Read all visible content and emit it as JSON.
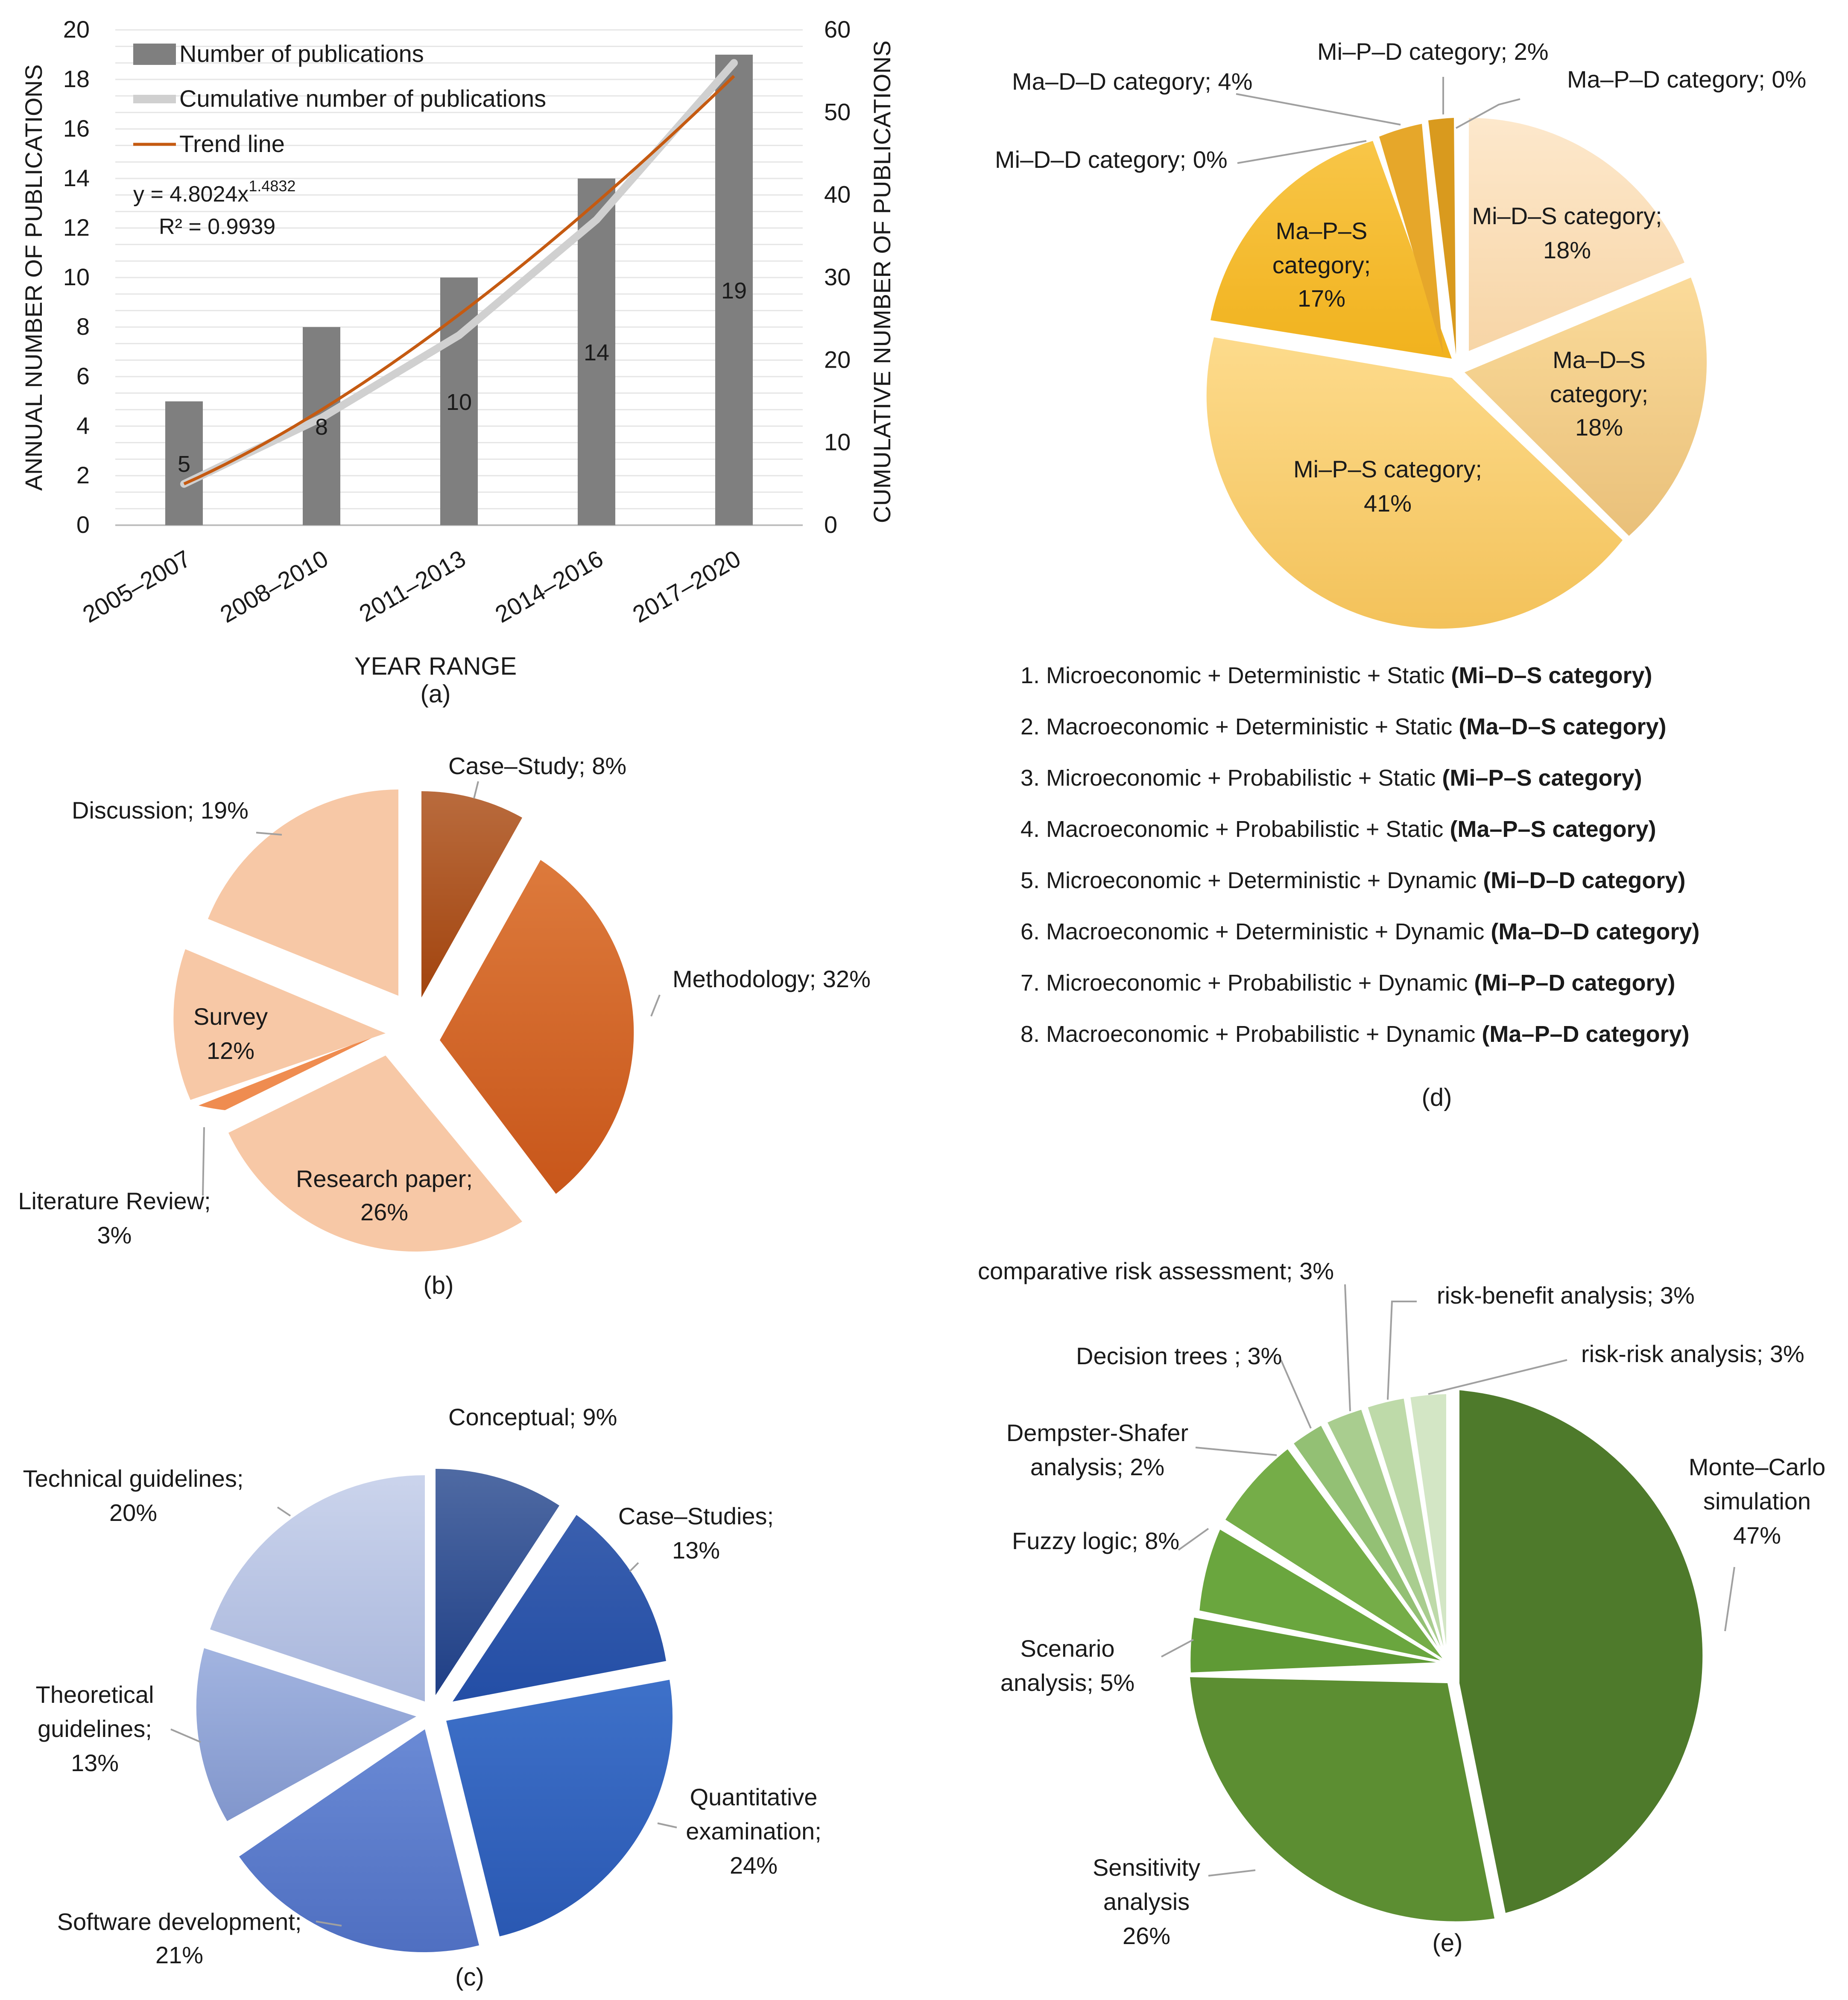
{
  "chart_data": [
    {
      "id": "a",
      "type": "bar",
      "panel_label": "(a)",
      "categories": [
        "2005–2007",
        "2008–2010",
        "2011–2013",
        "2014–2016",
        "2017–2020"
      ],
      "series": [
        {
          "name": "Number of publications",
          "axis": "left",
          "values": [
            5,
            8,
            10,
            14,
            19
          ],
          "labels": [
            "5",
            "8",
            "10",
            "14",
            "19"
          ],
          "color": "#7f7f7f"
        },
        {
          "name": "Cumulative number of publications",
          "axis": "right",
          "type": "line",
          "values": [
            5,
            13,
            23,
            37,
            56
          ],
          "color": "#d0d0d0"
        },
        {
          "name": "Trend line",
          "axis": "right",
          "type": "line",
          "values": [
            5,
            14,
            24.5,
            36.5,
            52.3
          ],
          "color": "#c55a11"
        }
      ],
      "equation": "y = 4.8024x",
      "equation_exponent": "1.4832",
      "r_squared": "R² = 0.9939",
      "xlabel": "YEAR RANGE",
      "ylabel": "ANNUAL NUMBER OF PUBLICATIONS",
      "y2label": "CUMULATIVE NUMBER OF PUBLICATIONS",
      "ylim": [
        0,
        20
      ],
      "y_ticks": [
        "0",
        "2",
        "4",
        "6",
        "8",
        "10",
        "12",
        "14",
        "16",
        "18",
        "20"
      ],
      "y2lim": [
        0,
        60
      ],
      "y2_ticks": [
        "0",
        "10",
        "20",
        "30",
        "40",
        "50",
        "60"
      ],
      "grid": true,
      "legend": "top-left"
    },
    {
      "id": "b",
      "type": "pie",
      "panel_label": "(b)",
      "slices": [
        {
          "label": "Case–Study; 8%",
          "value": 8,
          "color": "#a6501e"
        },
        {
          "label": "Methodology; 32%",
          "value": 32,
          "color": "#d4692c"
        },
        {
          "label": "Research paper; 26%",
          "value": 26,
          "color": "#f7c8a6"
        },
        {
          "label": "Literature Review; 3%",
          "value": 3,
          "color": "#ee8850"
        },
        {
          "label": "Survey 12%",
          "value": 12,
          "color": "#f7c8a6"
        },
        {
          "label": "Discussion; 19%",
          "value": 19,
          "color": "#f7c8a6"
        }
      ]
    },
    {
      "id": "c",
      "type": "pie",
      "panel_label": "(c)",
      "slices": [
        {
          "label": "Conceptual; 9%",
          "value": 9,
          "color": "#2e4d8c"
        },
        {
          "label": "Case–Studies; 13%",
          "value": 13,
          "color": "#2f56a8"
        },
        {
          "label": "Quantitative examination; 24%",
          "value": 24,
          "color": "#3767bf"
        },
        {
          "label": "Software development; 21%",
          "value": 21,
          "color": "#6282cc"
        },
        {
          "label": "Theoretical guidelines; 13%",
          "value": 13,
          "color": "#9aacdb"
        },
        {
          "label": "Technical guidelines; 20%",
          "value": 20,
          "color": "#bfcbe8"
        }
      ]
    },
    {
      "id": "d",
      "type": "pie",
      "panel_label": "(d)",
      "slices": [
        {
          "label": "Mi–D–S category; 18%",
          "value": 18,
          "color": "#fbdfb9"
        },
        {
          "label": "Ma–D–S category; 18%",
          "value": 18,
          "color": "#f5cf86"
        },
        {
          "label": "Mi–P–S category; 41%",
          "value": 41,
          "color": "#fbd27a"
        },
        {
          "label": "Ma–P–S category; 17%",
          "value": 17,
          "color": "#f6bd30"
        },
        {
          "label": "Mi–D–D category; 0%",
          "value": 0,
          "color": "#e5a300"
        },
        {
          "label": "Ma–D–D category; 4%",
          "value": 4,
          "color": "#e6a826"
        },
        {
          "label": "Mi–P–D category; 2%",
          "value": 2,
          "color": "#d89a20"
        },
        {
          "label": "Ma–P–D category; 0%",
          "value": 0,
          "color": "#c88a10"
        }
      ]
    },
    {
      "id": "e",
      "type": "pie",
      "panel_label": "(e)",
      "slices": [
        {
          "label": "Monte–Carlo simulation 47%",
          "value": 47,
          "color": "#4e7a2b"
        },
        {
          "label": "Sensitivity analysis 26%",
          "value": 26,
          "color": "#5c8e32"
        },
        {
          "label": "Scenario analysis; 5%",
          "value": 5,
          "color": "#5f9a35"
        },
        {
          "label": "Fuzzy logic; 8%",
          "value": 8,
          "color": "#6aa63e"
        },
        {
          "label": "Dempster-Shafer analysis; 2%",
          "value": 2,
          "color": "#75ad48"
        },
        {
          "label": "Decision trees ; 3%",
          "value": 3,
          "color": "#93c074"
        },
        {
          "label": "comparative risk assessment; 3%",
          "value": 3,
          "color": "#a9cd8f"
        },
        {
          "label": "risk-benefit analysis; 3%",
          "value": 3,
          "color": "#bedaa9"
        },
        {
          "label": "risk-risk analysis; 3%",
          "value": 3,
          "color": "#d3e6c5"
        }
      ]
    }
  ],
  "panels": {
    "a": {
      "legend": [
        "Number of publications",
        "Cumulative number of publications",
        "Trend line"
      ]
    },
    "b": {
      "labels": {
        "case_study": "Case–Study; 8%",
        "discussion": "Discussion; 19%",
        "methodology": "Methodology; 32%",
        "survey_1": "Survey",
        "survey_2": "12%",
        "research_1": "Research paper;",
        "research_2": "26%",
        "litrev_1": "Literature Review;",
        "litrev_2": "3%"
      }
    },
    "c": {
      "labels": {
        "conceptual": "Conceptual; 9%",
        "case_1": "Case–Studies;",
        "case_2": "13%",
        "tech_1": "Technical guidelines;",
        "tech_2": "20%",
        "theo_1": "Theoretical",
        "theo_2": "guidelines;",
        "theo_3": "13%",
        "quant_1": "Quantitative",
        "quant_2": "examination;",
        "quant_3": "24%",
        "soft_1": "Software development;",
        "soft_2": "21%"
      }
    },
    "d": {
      "labels": {
        "mi_p_d": "Mi–P–D category; 2%",
        "ma_d_d": "Ma–D–D category; 4%",
        "ma_p_d": "Ma–P–D category; 0%",
        "mi_d_d": "Mi–D–D category; 0%",
        "mi_d_s_1": "Mi–D–S category;",
        "mi_d_s_2": "18%",
        "ma_p_s_1": "Ma–P–S",
        "ma_p_s_2": "category;",
        "ma_p_s_3": "17%",
        "ma_d_s_1": "Ma–D–S",
        "ma_d_s_2": "category;",
        "ma_d_s_3": "18%",
        "mi_p_s_1": "Mi–P–S category;",
        "mi_p_s_2": "41%"
      },
      "list": [
        {
          "text": "1. Microeconomic + Deterministic + Static ",
          "bold": "(Mi–D–S category)"
        },
        {
          "text": "2. Macroeconomic + Deterministic + Static ",
          "bold": "(Ma–D–S category)"
        },
        {
          "text": "3. Microeconomic + Probabilistic + Static ",
          "bold": "(Mi–P–S category)"
        },
        {
          "text": "4. Macroeconomic + Probabilistic + Static ",
          "bold": "(Ma–P–S category)"
        },
        {
          "text": "5. Microeconomic + Deterministic + Dynamic ",
          "bold": "(Mi–D–D category)"
        },
        {
          "text": "6. Macroeconomic + Deterministic + Dynamic ",
          "bold": "(Ma–D–D category)"
        },
        {
          "text": "7. Microeconomic + Probabilistic + Dynamic ",
          "bold": "(Mi–P–D category)"
        },
        {
          "text": "8. Macroeconomic + Probabilistic + Dynamic ",
          "bold": "(Ma–P–D category)"
        }
      ]
    },
    "e": {
      "labels": {
        "comparative": "comparative risk assessment; 3%",
        "risk_benefit": "risk-benefit analysis; 3%",
        "decision": "Decision trees ; 3%",
        "risk_risk": "risk-risk analysis; 3%",
        "dempster_1": "Dempster-Shafer",
        "dempster_2": "analysis; 2%",
        "monte_1": "Monte–Carlo",
        "monte_2": "simulation",
        "monte_3": "47%",
        "fuzzy": "Fuzzy logic; 8%",
        "scenario_1": "Scenario",
        "scenario_2": "analysis; 5%",
        "sens_1": "Sensitivity",
        "sens_2": "analysis",
        "sens_3": "26%"
      }
    }
  }
}
